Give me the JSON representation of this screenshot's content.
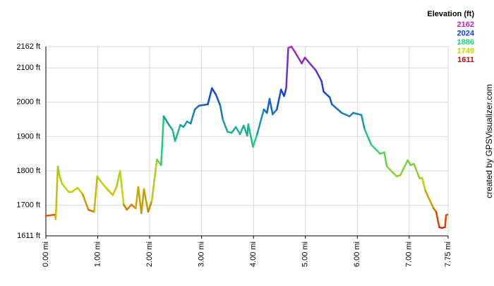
{
  "chart_data": {
    "type": "line",
    "legend_title": "Elevation (ft)",
    "legend": [
      {
        "value": 2162,
        "color": "#c020c0"
      },
      {
        "value": 2024,
        "color": "#1040e0"
      },
      {
        "value": 1886,
        "color": "#20d080"
      },
      {
        "value": 1749,
        "color": "#c8d200"
      },
      {
        "value": 1611,
        "color": "#e00000"
      }
    ],
    "credit": "created by GPSVisualizer.com",
    "grid": true,
    "xlim": [
      0,
      7.75
    ],
    "ylim": [
      1611,
      2162
    ],
    "xticks": [
      {
        "value": 0,
        "label": "0.00 mi"
      },
      {
        "value": 1,
        "label": "1.00 mi"
      },
      {
        "value": 2,
        "label": "2.00 mi"
      },
      {
        "value": 3,
        "label": "3.00 mi"
      },
      {
        "value": 4,
        "label": "4.00 mi"
      },
      {
        "value": 5,
        "label": "5.00 mi"
      },
      {
        "value": 6,
        "label": "6.00 mi"
      },
      {
        "value": 7,
        "label": "7.00 mi"
      },
      {
        "value": 7.75,
        "label": "7.75 mi"
      }
    ],
    "yticks": [
      {
        "value": 1611,
        "label": "1611 ft"
      },
      {
        "value": 1700,
        "label": "1700 ft"
      },
      {
        "value": 1800,
        "label": "1800 ft"
      },
      {
        "value": 1900,
        "label": "1900 ft"
      },
      {
        "value": 2000,
        "label": "2000 ft"
      },
      {
        "value": 2100,
        "label": "2100 ft"
      },
      {
        "value": 2162,
        "label": "2162 ft"
      }
    ],
    "x": [
      0.0,
      0.18,
      0.19,
      0.23,
      0.26,
      0.31,
      0.44,
      0.5,
      0.61,
      0.71,
      0.82,
      0.93,
      0.99,
      1.07,
      1.18,
      1.29,
      1.36,
      1.43,
      1.5,
      1.56,
      1.65,
      1.73,
      1.78,
      1.84,
      1.89,
      1.97,
      2.04,
      2.14,
      2.22,
      2.27,
      2.38,
      2.44,
      2.49,
      2.59,
      2.65,
      2.72,
      2.79,
      2.87,
      2.95,
      3.12,
      3.2,
      3.28,
      3.36,
      3.41,
      3.5,
      3.58,
      3.66,
      3.74,
      3.81,
      3.88,
      3.9,
      3.99,
      4.07,
      4.2,
      4.26,
      4.31,
      4.37,
      4.45,
      4.53,
      4.59,
      4.63,
      4.67,
      4.73,
      4.8,
      4.93,
      4.99,
      5.2,
      5.31,
      5.35,
      5.47,
      5.51,
      5.7,
      5.85,
      5.92,
      6.08,
      6.14,
      6.27,
      6.44,
      6.52,
      6.57,
      6.76,
      6.83,
      6.97,
      7.03,
      7.09,
      7.2,
      7.25,
      7.31,
      7.47,
      7.52,
      7.58,
      7.63,
      7.69,
      7.71,
      7.74
    ],
    "values": [
      1669,
      1673,
      1660,
      1813,
      1788,
      1763,
      1739,
      1739,
      1751,
      1732,
      1687,
      1681,
      1784,
      1767,
      1747,
      1730,
      1753,
      1800,
      1702,
      1687,
      1702,
      1691,
      1753,
      1677,
      1747,
      1681,
      1712,
      1833,
      1817,
      1959,
      1932,
      1920,
      1887,
      1934,
      1928,
      1944,
      1938,
      1979,
      1990,
      1994,
      2041,
      2021,
      1990,
      1949,
      1914,
      1911,
      1928,
      1907,
      1932,
      1903,
      1936,
      1870,
      1907,
      1979,
      1969,
      2010,
      1965,
      1979,
      2037,
      2018,
      2041,
      2158,
      2162,
      2146,
      2113,
      2130,
      2093,
      2062,
      2031,
      2014,
      1994,
      1969,
      1959,
      1969,
      1963,
      1922,
      1876,
      1850,
      1854,
      1813,
      1784,
      1788,
      1831,
      1817,
      1821,
      1778,
      1780,
      1743,
      1691,
      1681,
      1636,
      1634,
      1636,
      1671,
      1673
    ]
  }
}
